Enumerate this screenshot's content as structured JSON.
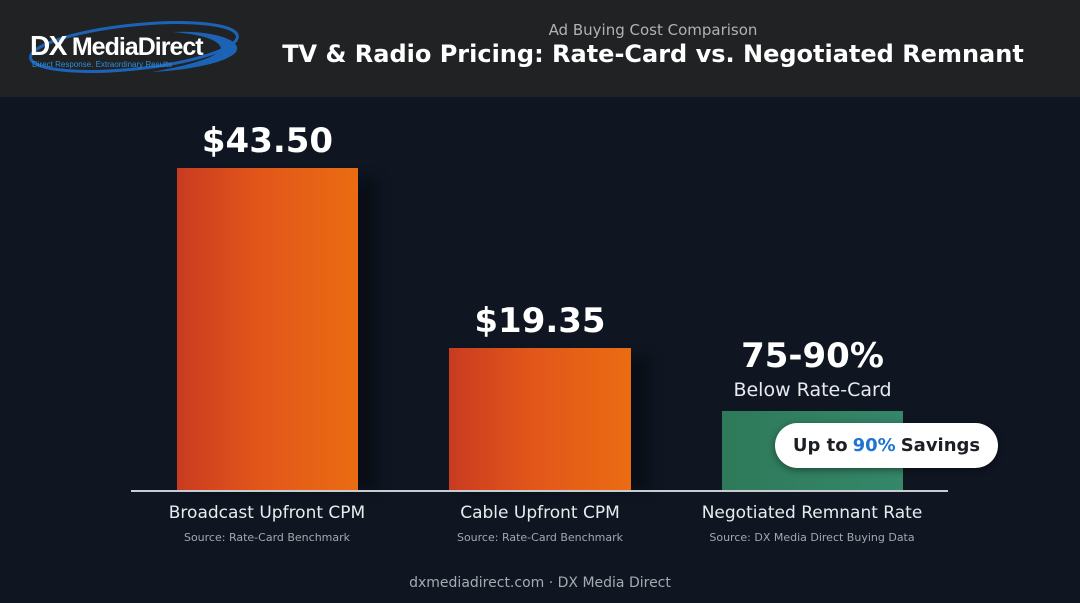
{
  "brand": {
    "logo_dx": "DX",
    "logo_name": "MediaDirect",
    "tagline": "Direct Response. Extraordinary Results",
    "accent_color": "#1f74d0"
  },
  "header": {
    "subtitle": "Ad Buying Cost Comparison",
    "title": "TV & Radio Pricing: Rate-Card vs. Negotiated Remnant"
  },
  "chart_data": {
    "type": "bar",
    "title": "TV & Radio Pricing: Rate-Card vs. Negotiated Remnant",
    "subtitle": "Ad Buying Cost Comparison",
    "categories": [
      "Broadcast Upfront CPM",
      "Cable Upfront CPM",
      "Negotiated Remnant Rate"
    ],
    "values": [
      43.5,
      19.35,
      null
    ],
    "data_labels": [
      "$43.50",
      "$19.35",
      "75-90%"
    ],
    "data_label_sub": [
      "",
      "",
      "Below Rate-Card"
    ],
    "sources": [
      "Source: Rate-Card Benchmark",
      "Source: Rate-Card Benchmark",
      "Source: DX Media Direct Buying Data"
    ],
    "bar_colors": [
      "#e2561a",
      "#e2561a",
      "#2e7a5a"
    ],
    "grid": false,
    "legend": "none"
  },
  "callout": {
    "prefix": "Up to",
    "highlight": "90%",
    "suffix": "Savings"
  },
  "footer": {
    "text": "dxmediadirect.com · DX Media Direct"
  }
}
